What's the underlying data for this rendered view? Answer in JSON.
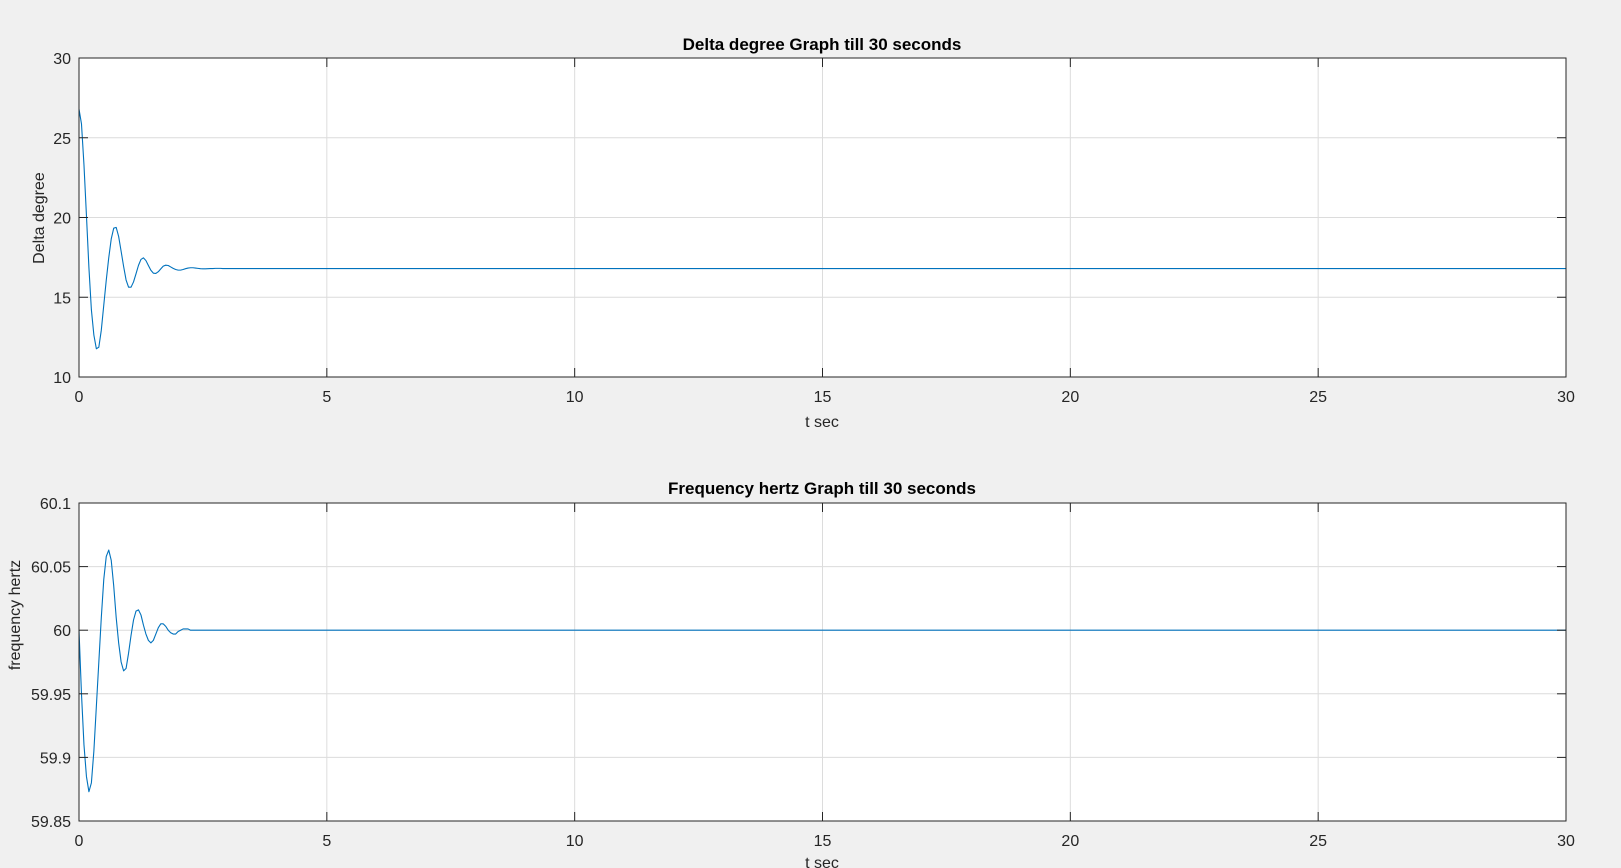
{
  "figure": {
    "background": "#f0f0f0",
    "axes_background": "#ffffff",
    "line_color": "#0072bd",
    "grid_color": "#dcdcdc"
  },
  "chart_data": [
    {
      "type": "line",
      "title": "Delta degree Graph till 30 seconds",
      "xlabel": "t sec",
      "ylabel": "Delta degree",
      "xlim": [
        0,
        30
      ],
      "ylim": [
        10,
        30
      ],
      "xticks": [
        0,
        5,
        10,
        15,
        20,
        25,
        30
      ],
      "yticks": [
        10,
        15,
        20,
        25,
        30
      ],
      "xtick_labels": [
        "0",
        "5",
        "10",
        "15",
        "20",
        "25",
        "30"
      ],
      "ytick_labels": [
        "10",
        "15",
        "20",
        "25",
        "30"
      ],
      "grid": true,
      "series": [
        {
          "name": "delta",
          "x": [
            0,
            0.05,
            0.1,
            0.15,
            0.2,
            0.25,
            0.3,
            0.35,
            0.4,
            0.45,
            0.5,
            0.55,
            0.6,
            0.65,
            0.7,
            0.75,
            0.8,
            0.85,
            0.9,
            0.95,
            1.0,
            1.05,
            1.1,
            1.15,
            1.2,
            1.25,
            1.3,
            1.35,
            1.4,
            1.45,
            1.5,
            1.55,
            1.6,
            1.65,
            1.7,
            1.75,
            1.8,
            1.85,
            1.9,
            1.95,
            2.0,
            2.05,
            2.1,
            2.15,
            2.2,
            2.25,
            2.3,
            2.35,
            2.4,
            2.45,
            2.5,
            2.55,
            2.6,
            2.65,
            2.7,
            2.75,
            2.8,
            2.85,
            2.9,
            2.95,
            3.0,
            3.1,
            3.2,
            3.3,
            3.4,
            3.5,
            3.6,
            3.7,
            3.8,
            3.9,
            4.0,
            4.2,
            4.4,
            4.6,
            4.8,
            5.0,
            30
          ],
          "y": [
            26.8,
            25.87,
            23.31,
            20.13,
            16.86,
            14.21,
            12.63,
            11.77,
            11.87,
            12.94,
            14.51,
            16.07,
            17.47,
            18.65,
            19.33,
            19.38,
            18.81,
            17.88,
            16.93,
            16.08,
            15.63,
            15.63,
            15.96,
            16.47,
            17.0,
            17.37,
            17.47,
            17.3,
            16.99,
            16.69,
            16.51,
            16.49,
            16.6,
            16.78,
            16.95,
            17.01,
            16.99,
            16.9,
            16.81,
            16.74,
            16.7,
            16.7,
            16.74,
            16.79,
            16.83,
            16.85,
            16.85,
            16.83,
            16.81,
            16.79,
            16.78,
            16.78,
            16.79,
            16.8,
            16.8,
            16.81,
            16.81,
            16.81,
            16.8,
            16.8,
            16.8,
            16.8,
            16.8,
            16.8,
            16.8,
            16.8,
            16.8,
            16.8,
            16.8,
            16.8,
            16.8,
            16.8,
            16.8,
            16.8,
            16.8,
            16.8,
            16.8
          ]
        }
      ]
    },
    {
      "type": "line",
      "title": "Frequency hertz Graph till 30 seconds",
      "xlabel": "t sec",
      "ylabel": "frequency hertz",
      "xlim": [
        0,
        30
      ],
      "ylim": [
        59.85,
        60.1
      ],
      "xticks": [
        0,
        5,
        10,
        15,
        20,
        25,
        30
      ],
      "yticks": [
        59.85,
        59.9,
        59.95,
        60,
        60.05,
        60.1
      ],
      "xtick_labels": [
        "0",
        "5",
        "10",
        "15",
        "20",
        "25",
        "30"
      ],
      "ytick_labels": [
        "59.85",
        "59.9",
        "59.95",
        "60",
        "60.05",
        "60.1"
      ],
      "grid": true,
      "series": [
        {
          "name": "frequency",
          "x": [
            0,
            0.05,
            0.1,
            0.15,
            0.2,
            0.25,
            0.3,
            0.35,
            0.4,
            0.45,
            0.5,
            0.55,
            0.6,
            0.65,
            0.7,
            0.75,
            0.8,
            0.85,
            0.9,
            0.95,
            1.0,
            1.05,
            1.1,
            1.15,
            1.2,
            1.25,
            1.3,
            1.35,
            1.4,
            1.45,
            1.5,
            1.55,
            1.6,
            1.65,
            1.7,
            1.75,
            1.8,
            1.85,
            1.9,
            1.95,
            2.0,
            2.05,
            2.1,
            2.15,
            2.2,
            2.25,
            2.3,
            2.35,
            2.4,
            2.45,
            2.5,
            2.55,
            2.6,
            2.65,
            2.7,
            2.75,
            2.8,
            2.85,
            2.9,
            2.95,
            3.0,
            3.1,
            3.2,
            3.3,
            3.4,
            3.5,
            3.6,
            3.7,
            3.8,
            3.9,
            4.0,
            4.2,
            4.4,
            4.6,
            4.8,
            5.0,
            30
          ],
          "y": [
            60.0,
            59.95,
            59.91,
            59.885,
            59.873,
            59.88,
            59.905,
            59.94,
            59.975,
            60.01,
            60.04,
            60.058,
            60.063,
            60.055,
            60.035,
            60.01,
            59.99,
            59.975,
            59.968,
            59.97,
            59.982,
            59.996,
            60.008,
            60.015,
            60.016,
            60.012,
            60.004,
            59.997,
            59.992,
            59.99,
            59.992,
            59.997,
            60.002,
            60.005,
            60.005,
            60.003,
            60.0,
            59.998,
            59.997,
            59.997,
            59.999,
            60.0,
            60.001,
            60.001,
            60.001,
            60.0,
            60.0,
            60.0,
            60.0,
            60.0,
            60.0,
            60.0,
            60.0,
            60.0,
            60.0,
            60.0,
            60.0,
            60.0,
            60.0,
            60.0,
            60.0,
            60.0,
            60.0,
            60.0,
            60.0,
            60.0,
            60.0,
            60.0,
            60.0,
            60.0,
            60.0,
            60.0,
            60.0,
            60.0,
            60.0,
            60.0,
            60.0
          ]
        }
      ]
    }
  ]
}
